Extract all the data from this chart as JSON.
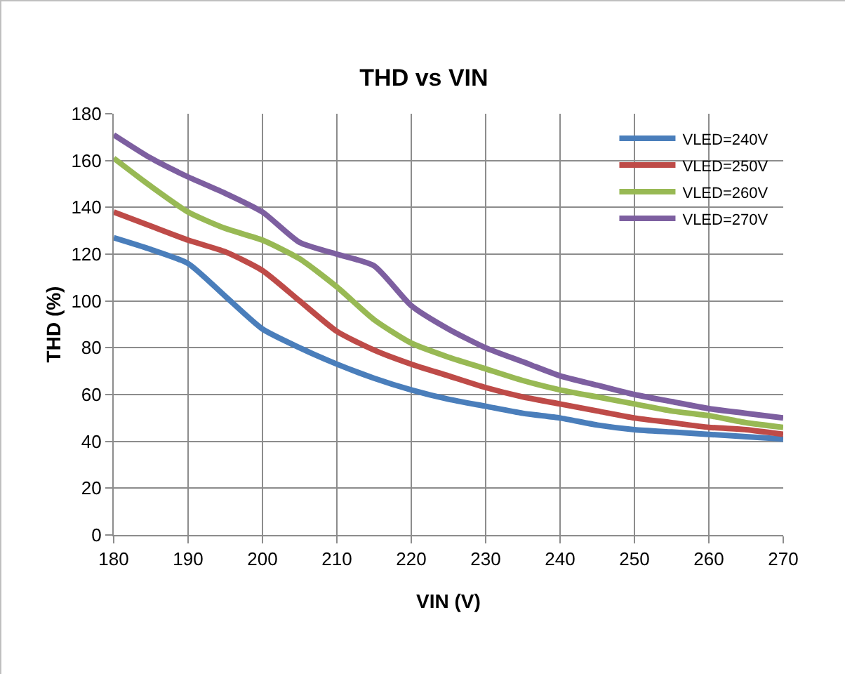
{
  "chart_data": {
    "type": "line",
    "title": "THD vs VIN",
    "xlabel": "VIN (V)",
    "ylabel": "THD (%)",
    "x": [
      180,
      185,
      190,
      195,
      200,
      205,
      210,
      215,
      220,
      225,
      230,
      235,
      240,
      245,
      250,
      255,
      260,
      265,
      270
    ],
    "series": [
      {
        "name": "VLED=240V",
        "color": "#4a7ebb",
        "values": [
          127,
          122,
          116,
          102,
          88,
          80,
          73,
          67,
          62,
          58,
          55,
          52,
          50,
          47,
          45,
          44,
          43,
          42,
          41
        ]
      },
      {
        "name": "VLED=250V",
        "color": "#be4b48",
        "values": [
          138,
          132,
          126,
          121,
          113,
          100,
          87,
          79,
          73,
          68,
          63,
          59,
          56,
          53,
          50,
          48,
          46,
          45,
          43
        ]
      },
      {
        "name": "VLED=260V",
        "color": "#98b954",
        "values": [
          161,
          149,
          138,
          131,
          126,
          118,
          106,
          92,
          82,
          76,
          71,
          66,
          62,
          59,
          56,
          53,
          51,
          48,
          46
        ]
      },
      {
        "name": "VLED=270V",
        "color": "#7d5fa0",
        "values": [
          171,
          161,
          153,
          146,
          138,
          125,
          120,
          115,
          98,
          88,
          80,
          74,
          68,
          64,
          60,
          57,
          54,
          52,
          50
        ]
      }
    ],
    "xlim": [
      180,
      270
    ],
    "xticks": [
      180,
      190,
      200,
      210,
      220,
      230,
      240,
      250,
      260,
      270
    ],
    "ylim": [
      0,
      180
    ],
    "yticks": [
      0,
      20,
      40,
      60,
      80,
      100,
      120,
      140,
      160,
      180
    ],
    "grid": true,
    "legend": "top right",
    "marker": "none",
    "line_style": "solid"
  }
}
